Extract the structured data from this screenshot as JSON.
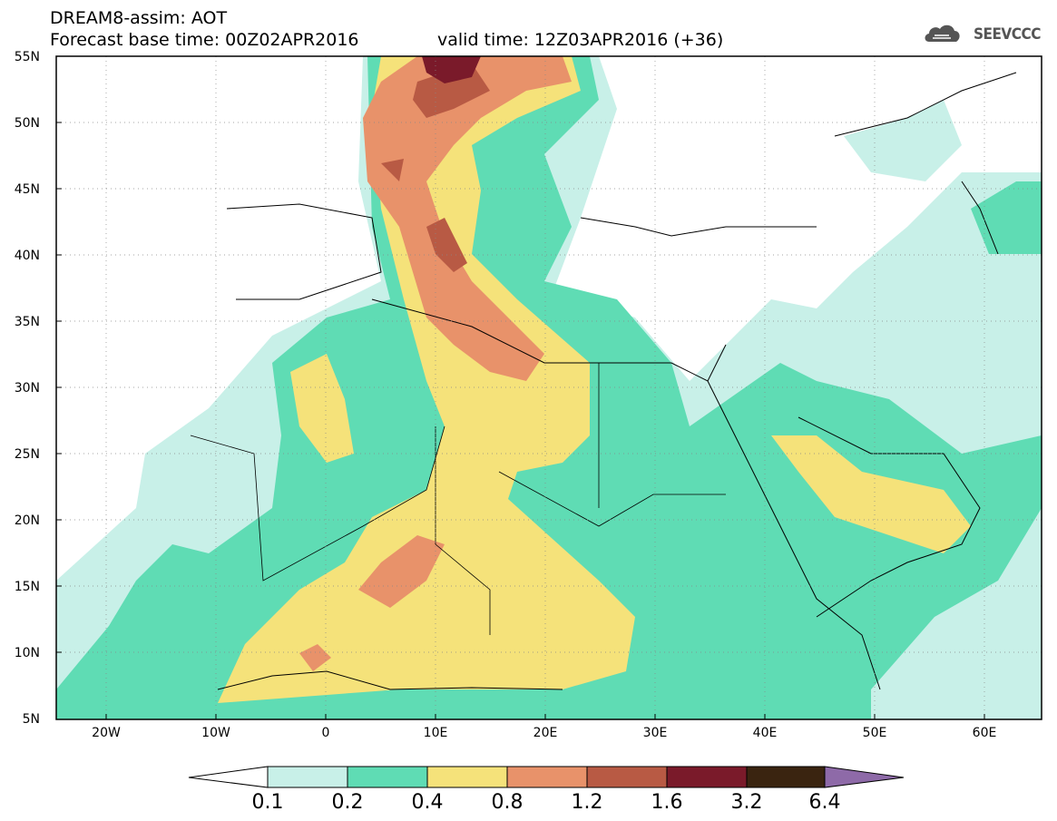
{
  "header": {
    "title": "DREAM8-assim: AOT",
    "base_time": "Forecast base time: 00Z02APR2016",
    "valid_time": "valid time: 12Z03APR2016 (+36)"
  },
  "logo": {
    "text": "SEEVCCC",
    "icon": "cloud-icon"
  },
  "axes": {
    "lat_labels": [
      "55N",
      "50N",
      "45N",
      "40N",
      "35N",
      "30N",
      "25N",
      "20N",
      "15N",
      "10N",
      "5N"
    ],
    "lon_labels": [
      "20W",
      "10W",
      "0",
      "10E",
      "20E",
      "30E",
      "40E",
      "50E",
      "60E"
    ]
  },
  "colorbar": {
    "labels": [
      "0.1",
      "0.2",
      "0.4",
      "0.8",
      "1.2",
      "1.6",
      "3.2",
      "6.4"
    ],
    "colors": [
      "#c8f0e8",
      "#5fdcb4",
      "#f5e27a",
      "#e8926a",
      "#b85a44",
      "#7a1a2a",
      "#3a2410",
      "#8e6aa8"
    ]
  }
}
